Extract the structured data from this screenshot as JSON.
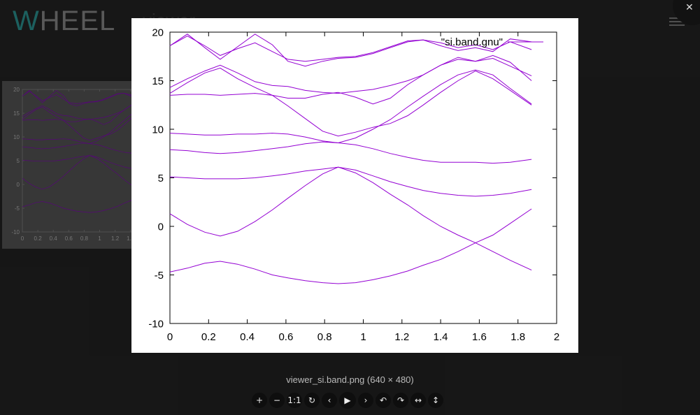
{
  "app": {
    "logo_letter": "W",
    "logo_rest": "HEEL",
    "subtitle": "viewer",
    "menu_icon": "hamburger-icon"
  },
  "viewer": {
    "close_label": "✕",
    "caption": "viewer_si.band.png (640 × 480)",
    "toolbar": [
      {
        "name": "zoom-in-button",
        "glyph": "+"
      },
      {
        "name": "zoom-out-button",
        "glyph": "−"
      },
      {
        "name": "one-to-one-button",
        "glyph": "1:1"
      },
      {
        "name": "reset-button",
        "glyph": "↻"
      },
      {
        "name": "prev-button",
        "glyph": "‹"
      },
      {
        "name": "play-button",
        "glyph": "▶"
      },
      {
        "name": "next-button",
        "glyph": "›"
      },
      {
        "name": "rotate-left-button",
        "glyph": "↶"
      },
      {
        "name": "rotate-right-button",
        "glyph": "↷"
      },
      {
        "name": "flip-horizontal-button",
        "glyph": "↔"
      },
      {
        "name": "flip-vertical-button",
        "glyph": "↕"
      }
    ]
  },
  "chart_data": {
    "type": "line",
    "legend_entry": "\"si.band.gnu\"",
    "legend_position": "top-right",
    "color": "#9400d3",
    "xlim": [
      0,
      2
    ],
    "ylim": [
      -10,
      20
    ],
    "xticks": [
      0,
      0.2,
      0.4,
      0.6,
      0.8,
      1,
      1.2,
      1.4,
      1.6,
      1.8,
      2
    ],
    "yticks": [
      -10,
      -5,
      0,
      5,
      10,
      15,
      20
    ],
    "x": [
      0,
      0.09,
      0.18,
      0.26,
      0.35,
      0.44,
      0.53,
      0.61,
      0.7,
      0.79,
      0.87,
      0.96,
      1.05,
      1.14,
      1.23,
      1.31,
      1.4,
      1.49,
      1.58,
      1.67,
      1.76,
      1.87
    ],
    "series": [
      {
        "values": [
          -4.7,
          -4.3,
          -3.8,
          -3.6,
          -3.9,
          -4.4,
          -5.0,
          -5.3,
          -5.6,
          -5.8,
          -5.9,
          -5.8,
          -5.5,
          -5.1,
          -4.6,
          -4.0,
          -3.4,
          -2.6,
          -1.7,
          -0.9,
          0.3,
          1.8
        ]
      },
      {
        "values": [
          1.3,
          0.2,
          -0.6,
          -1.0,
          -0.5,
          0.5,
          1.7,
          2.9,
          4.2,
          5.4,
          6.1,
          5.5,
          4.5,
          3.3,
          2.2,
          1.1,
          0.0,
          -0.9,
          -1.7,
          -2.6,
          -3.5,
          -4.5
        ]
      },
      {
        "values": [
          5.1,
          5.0,
          4.9,
          4.9,
          4.9,
          5.0,
          5.2,
          5.4,
          5.7,
          5.9,
          6.1,
          5.8,
          5.2,
          4.6,
          4.1,
          3.7,
          3.4,
          3.2,
          3.1,
          3.2,
          3.4,
          3.8
        ]
      },
      {
        "values": [
          7.9,
          7.8,
          7.6,
          7.5,
          7.6,
          7.8,
          8.0,
          8.2,
          8.5,
          8.7,
          8.6,
          8.4,
          8.0,
          7.5,
          7.1,
          6.8,
          6.6,
          6.6,
          6.6,
          6.5,
          6.6,
          6.9
        ]
      },
      {
        "values": [
          9.6,
          9.5,
          9.4,
          9.4,
          9.5,
          9.5,
          9.6,
          9.5,
          9.2,
          8.8,
          8.6,
          9.1,
          10.0,
          11.0,
          12.3,
          13.4,
          14.6,
          15.6,
          16.1,
          15.6,
          14.2,
          12.6
        ]
      },
      {
        "values": [
          13.5,
          13.6,
          13.6,
          13.5,
          13.6,
          13.7,
          13.5,
          13.2,
          13.2,
          13.6,
          13.8,
          13.3,
          12.6,
          13.2,
          14.6,
          15.6,
          16.6,
          17.2,
          17.0,
          17.6,
          16.9,
          15.0
        ]
      },
      {
        "values": [
          14.3,
          15.2,
          16.0,
          16.6,
          15.8,
          14.9,
          14.5,
          14.4,
          14.0,
          13.8,
          13.7,
          13.9,
          14.1,
          14.5,
          15.0,
          15.6,
          16.6,
          17.4,
          17.0,
          17.3,
          16.5,
          15.5
        ]
      },
      {
        "values": [
          13.7,
          14.8,
          15.8,
          16.3,
          15.2,
          14.3,
          13.5,
          12.4,
          11.1,
          9.8,
          9.3,
          9.7,
          10.2,
          10.6,
          11.4,
          12.5,
          13.8,
          15.0,
          16.0,
          15.2,
          14.0,
          12.5
        ]
      },
      {
        "values": [
          18.6,
          19.8,
          18.4,
          17.2,
          18.5,
          19.8,
          18.7,
          17.0,
          16.5,
          17.0,
          17.3,
          17.4,
          17.8,
          18.4,
          19.0,
          19.2,
          18.6,
          18.1,
          18.4,
          18.0,
          19.3,
          19.0
        ]
      },
      {
        "values": [
          18.6,
          19.6,
          18.6,
          17.6,
          18.3,
          18.9,
          18.0,
          17.2,
          17.0,
          17.2,
          17.4,
          17.5,
          17.9,
          18.5,
          19.1,
          19.2,
          18.9,
          18.4,
          18.7,
          18.2,
          19.0,
          18.2
        ]
      }
    ]
  }
}
